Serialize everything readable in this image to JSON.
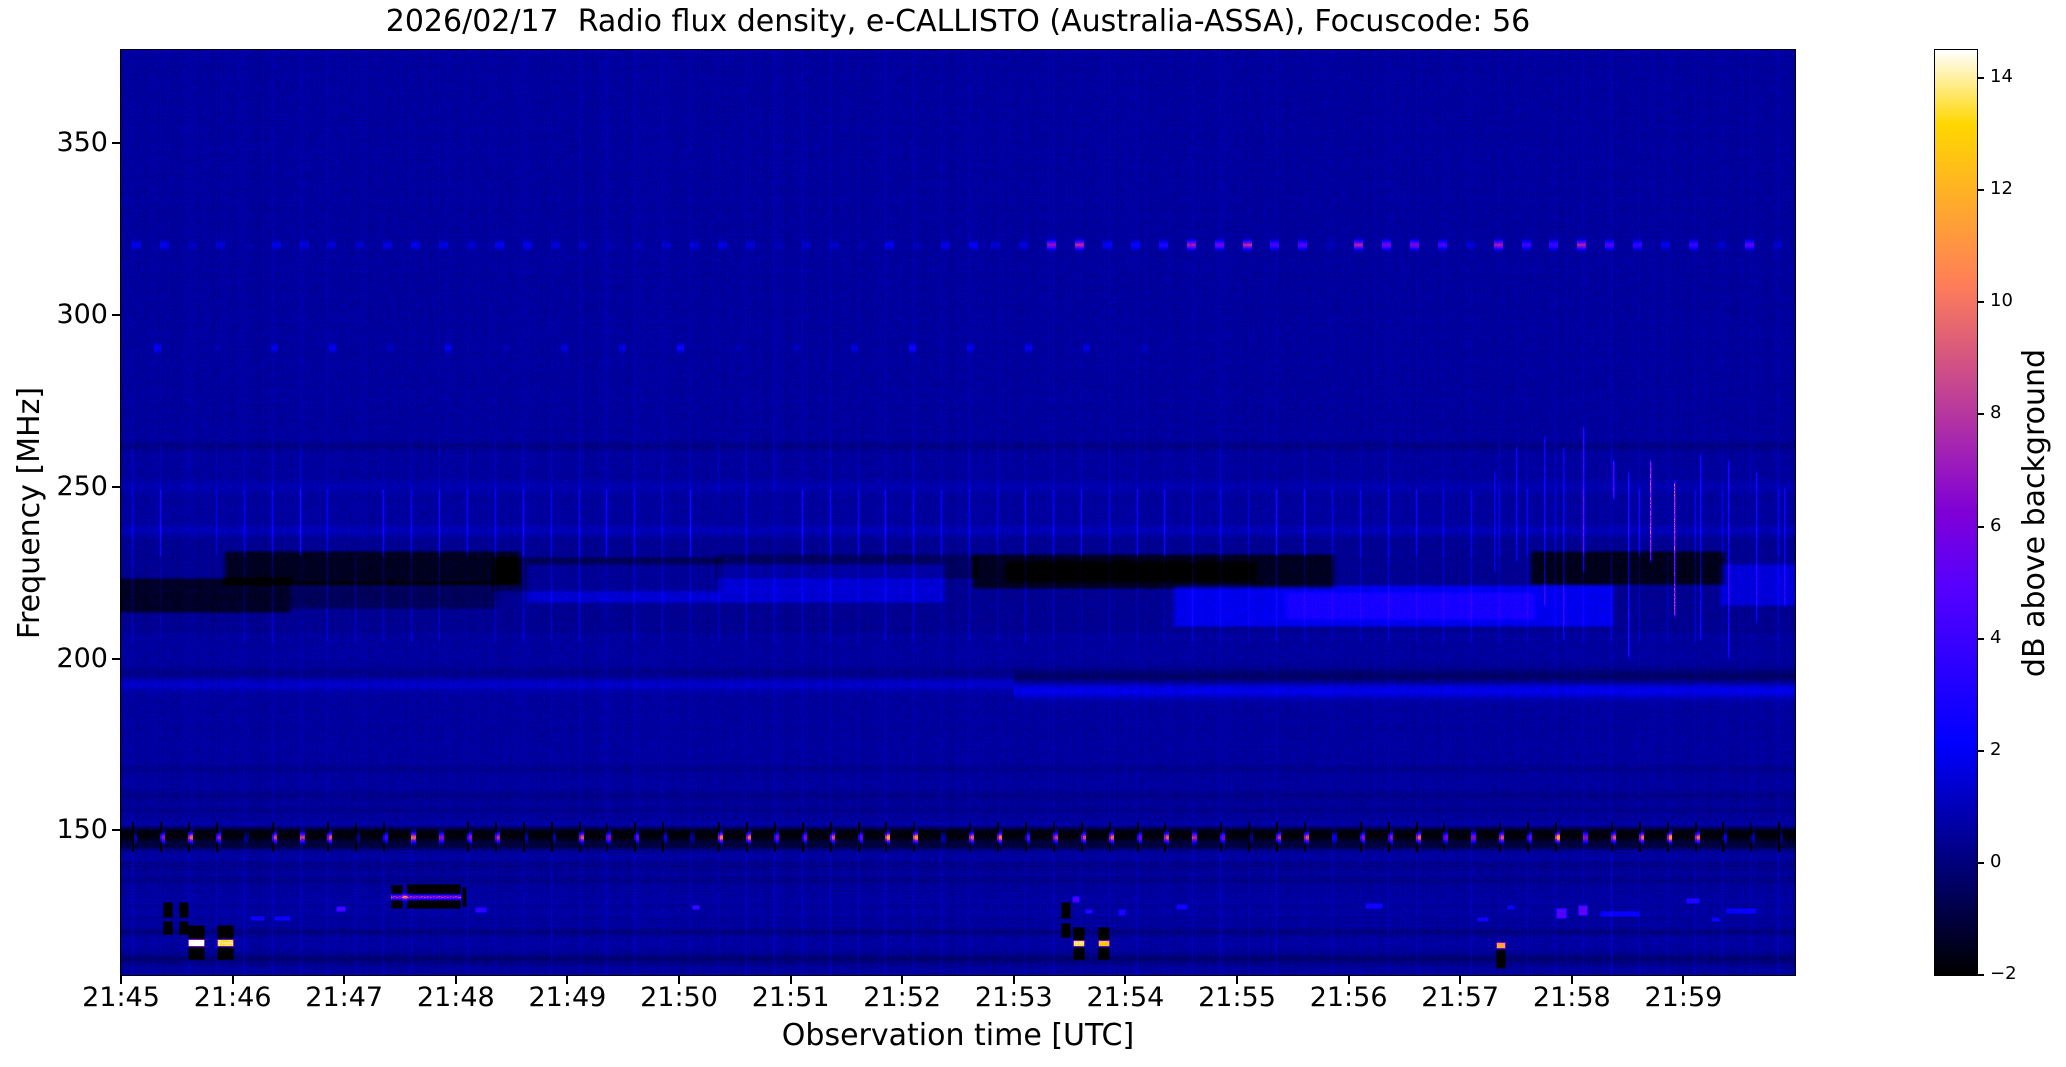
{
  "title": "2026/02/17  Radio flux density, e-CALLISTO (Australia-ASSA), Focuscode: 56",
  "chart_data": {
    "type": "heatmap",
    "title": "2026/02/17  Radio flux density, e-CALLISTO (Australia-ASSA), Focuscode: 56",
    "xlabel": "Observation time [UTC]",
    "ylabel": "Frequency [MHz]",
    "x_ticks": [
      "21:45",
      "21:46",
      "21:47",
      "21:48",
      "21:49",
      "21:50",
      "21:51",
      "21:52",
      "21:53",
      "21:54",
      "21:55",
      "21:56",
      "21:57",
      "21:58",
      "21:59"
    ],
    "x_range_minutes": [
      0,
      15
    ],
    "y_ticks": [
      150,
      200,
      250,
      300,
      350
    ],
    "y_range_mhz": [
      107.9,
      377.1
    ],
    "grid": false,
    "colorbar": {
      "label": "dB above background",
      "ticks": [
        -2,
        0,
        2,
        4,
        6,
        8,
        10,
        12,
        14
      ],
      "vmin": -2.0,
      "vmax": 14.5,
      "colormap": "gnuplot2"
    },
    "background_db": 0.55,
    "noise_sigma_db": 0.42,
    "features": [
      {
        "type": "vcomb",
        "t0": 0.1,
        "t1": 15,
        "step": 0.25,
        "f0": 230,
        "f1": 249,
        "amp": 1.7
      },
      {
        "type": "vcomb",
        "t0": 0.1,
        "t1": 15,
        "step": 0.25,
        "f0": 205,
        "f1": 230,
        "amp": 0.7
      },
      {
        "type": "vcomb",
        "t0": 0.1,
        "t1": 15,
        "step": 0.25,
        "f0": 249,
        "f1": 263,
        "amp": 0.4
      },
      {
        "type": "vcomb",
        "t0": 0.1,
        "t1": 15,
        "step": 0.25,
        "f0": 108,
        "f1": 377,
        "amp": 0.22
      },
      {
        "type": "vcomb",
        "t0": 0.1,
        "t1": 15,
        "step": 0.25,
        "f0": 108,
        "f1": 148,
        "amp": 0.3
      },
      {
        "type": "hline",
        "t0": 0,
        "t1": 15,
        "f": 148.8,
        "hw": 1.8,
        "amp": -2.6
      },
      {
        "type": "hline",
        "t0": 0,
        "t1": 15,
        "f": 145.5,
        "hw": 0.7,
        "amp": -1.0
      },
      {
        "type": "hline",
        "t0": 0,
        "t1": 15,
        "f": 151.8,
        "hw": 0.6,
        "amp": 0.8
      },
      {
        "type": "vcomb",
        "t0": 0.1,
        "t1": 15,
        "step": 0.25,
        "f0": 144,
        "f1": 152.5,
        "amp": -2.8,
        "w": 2
      },
      {
        "type": "dotcomb",
        "t0": 0.1,
        "t1": 15,
        "step": 0.25,
        "f": 148.1,
        "hMHz": 1.0,
        "wMin": 0.045,
        "amp": 10,
        "ampVar": 4
      },
      {
        "type": "band",
        "t0": -0.2,
        "t1": 1.55,
        "f0": 213,
        "f1": 224,
        "amp": -1.7
      },
      {
        "type": "band",
        "t0": 0.9,
        "t1": 3.6,
        "f0": 221,
        "f1": 232,
        "amp": -1.8
      },
      {
        "type": "band",
        "t0": 1.5,
        "t1": 3.4,
        "f0": 214,
        "f1": 223,
        "amp": -0.9
      },
      {
        "type": "band",
        "t0": 3.3,
        "t1": 5.4,
        "f0": 219,
        "f1": 230,
        "amp": -1.0
      },
      {
        "type": "band",
        "t0": 3.6,
        "t1": 7.4,
        "f0": 216,
        "f1": 228,
        "amp": 1.1
      },
      {
        "type": "band",
        "t0": 5.3,
        "t1": 7.7,
        "f0": 223,
        "f1": 231,
        "amp": -0.8
      },
      {
        "type": "band",
        "t0": 7.6,
        "t1": 10.9,
        "f0": 220,
        "f1": 231,
        "amp": -1.8
      },
      {
        "type": "band",
        "t0": 7.9,
        "t1": 10.2,
        "f0": 222,
        "f1": 229,
        "amp": -0.8
      },
      {
        "type": "band",
        "t0": 9.4,
        "t1": 13.4,
        "f0": 209,
        "f1": 222,
        "amp": 1.5
      },
      {
        "type": "band",
        "t0": 10.4,
        "t1": 12.7,
        "f0": 211,
        "f1": 220,
        "amp": 1.0
      },
      {
        "type": "band",
        "t0": 12.6,
        "t1": 14.4,
        "f0": 221,
        "f1": 232,
        "amp": -1.9
      },
      {
        "type": "band",
        "t0": 14.3,
        "t1": 15.2,
        "f0": 215,
        "f1": 228,
        "amp": 1.2
      },
      {
        "type": "band",
        "t0": -0.2,
        "t1": 15.2,
        "f0": 207,
        "f1": 236,
        "amp": -0.2
      },
      {
        "type": "hline",
        "t0": 0,
        "t1": 8,
        "f": 192.5,
        "hw": 1.2,
        "amp": 0.7
      },
      {
        "type": "hline",
        "t0": 8,
        "t1": 15,
        "f": 190.8,
        "hw": 1.5,
        "amp": 1.3
      },
      {
        "type": "hline",
        "t0": 8,
        "t1": 15,
        "f": 195.0,
        "hw": 1.5,
        "amp": -0.9
      },
      {
        "type": "hline",
        "t0": 0,
        "t1": 8,
        "f": 196.0,
        "hw": 1.0,
        "amp": -0.4
      },
      {
        "type": "hline",
        "t0": 0,
        "t1": 15,
        "f": 262.0,
        "hw": 0.8,
        "amp": -0.45
      },
      {
        "type": "hline",
        "t0": 0,
        "t1": 15,
        "f": 250.0,
        "hw": 1.2,
        "amp": 0.3
      },
      {
        "type": "hline",
        "t0": 0,
        "t1": 15,
        "f": 237.5,
        "hw": 1.0,
        "amp": 0.4
      },
      {
        "type": "hline",
        "t0": 0,
        "t1": 15,
        "f": 168.0,
        "hw": 0.8,
        "amp": -0.3
      },
      {
        "type": "hline",
        "t0": 0,
        "t1": 15,
        "f": 160.0,
        "hw": 1.0,
        "amp": -0.35
      },
      {
        "type": "hline",
        "t0": 0,
        "t1": 15,
        "f": 156.0,
        "hw": 0.8,
        "amp": -0.3
      },
      {
        "type": "hline",
        "t0": 0,
        "t1": 15,
        "f": 140.0,
        "hw": 1.0,
        "amp": -0.3
      },
      {
        "type": "hline",
        "t0": 0,
        "t1": 15,
        "f": 135.5,
        "hw": 0.8,
        "amp": -0.35
      },
      {
        "type": "hline",
        "t0": 0,
        "t1": 15,
        "f": 120.5,
        "hw": 0.8,
        "amp": -0.5
      },
      {
        "type": "hline",
        "t0": 0,
        "t1": 15,
        "f": 112.5,
        "hw": 1.2,
        "amp": -0.7
      },
      {
        "type": "dotcomb",
        "t0": 0.1,
        "t1": 7.8,
        "step": 0.25,
        "f": 320.5,
        "hMHz": 0.8,
        "wMin": 0.08,
        "amp": 1.0,
        "ampVar": 0.6
      },
      {
        "type": "dotcomb",
        "t0": 7.8,
        "t1": 15,
        "step": 0.25,
        "f": 320.5,
        "hMHz": 0.8,
        "wMin": 0.08,
        "amp": 4.5,
        "ampVar": 3
      },
      {
        "type": "dotcomb",
        "t0": 0.3,
        "t1": 9.4,
        "step": 0.52,
        "f": 290.5,
        "hMHz": 0.8,
        "wMin": 0.06,
        "amp": 1.6,
        "ampVar": 0.5
      },
      {
        "type": "rect",
        "t0": 0.38,
        "t1": 0.46,
        "f0": 124.8,
        "f1": 129.2,
        "amp": -3
      },
      {
        "type": "rect",
        "t0": 0.38,
        "t1": 0.46,
        "f0": 119.8,
        "f1": 123.6,
        "amp": -3
      },
      {
        "type": "rect",
        "t0": 0.52,
        "t1": 0.6,
        "f0": 124.8,
        "f1": 129.2,
        "amp": -3
      },
      {
        "type": "rect",
        "t0": 0.52,
        "t1": 0.6,
        "f0": 119.8,
        "f1": 123.6,
        "amp": -3
      },
      {
        "type": "rect",
        "t0": 0.6,
        "t1": 0.74,
        "f0": 112.5,
        "f1": 122.5,
        "amp": -3
      },
      {
        "type": "rect",
        "t0": 0.6,
        "t1": 0.74,
        "f0": 116.2,
        "f1": 118.4,
        "amp": 17
      },
      {
        "type": "rect",
        "t0": 0.86,
        "t1": 1.0,
        "f0": 112.5,
        "f1": 122.5,
        "amp": -3
      },
      {
        "type": "rect",
        "t0": 0.86,
        "t1": 1.0,
        "f0": 116.2,
        "f1": 118.4,
        "amp": 16
      },
      {
        "type": "rect",
        "t0": 1.16,
        "t1": 1.28,
        "f0": 123.8,
        "f1": 125.2,
        "amp": 2.2
      },
      {
        "type": "rect",
        "t0": 1.37,
        "t1": 1.51,
        "f0": 123.8,
        "f1": 125.2,
        "amp": 2.2
      },
      {
        "type": "rect",
        "t0": 1.93,
        "t1": 2.01,
        "f0": 126.6,
        "f1": 127.9,
        "amp": 4.0
      },
      {
        "type": "rect",
        "t0": 2.42,
        "t1": 2.52,
        "f0": 127.5,
        "f1": 134.0,
        "amp": -3
      },
      {
        "type": "rect",
        "t0": 2.56,
        "t1": 3.04,
        "f0": 127.5,
        "f1": 134.5,
        "amp": -3.2
      },
      {
        "type": "rect",
        "t0": 3.06,
        "t1": 3.09,
        "f0": 128.0,
        "f1": 133.5,
        "amp": -3
      },
      {
        "type": "hline",
        "t0": 2.42,
        "t1": 3.04,
        "f": 130.7,
        "hw": 0.55,
        "amp": 9.5
      },
      {
        "type": "rect",
        "t0": 3.17,
        "t1": 3.27,
        "f0": 126.2,
        "f1": 127.8,
        "amp": 3.0
      },
      {
        "type": "rect",
        "t0": 5.12,
        "t1": 5.18,
        "f0": 127.2,
        "f1": 128.4,
        "amp": 4.0
      },
      {
        "type": "rect",
        "t0": 8.42,
        "t1": 8.5,
        "f0": 124.5,
        "f1": 129.0,
        "amp": -3
      },
      {
        "type": "rect",
        "t0": 8.42,
        "t1": 8.5,
        "f0": 119.0,
        "f1": 123.0,
        "amp": -3
      },
      {
        "type": "rect",
        "t0": 8.52,
        "t1": 8.58,
        "f0": 129.2,
        "f1": 130.8,
        "amp": 4.0
      },
      {
        "type": "rect",
        "t0": 8.53,
        "t1": 8.63,
        "f0": 112.5,
        "f1": 122.0,
        "amp": -3
      },
      {
        "type": "rect",
        "t0": 8.53,
        "t1": 8.63,
        "f0": 116.2,
        "f1": 118.2,
        "amp": 16
      },
      {
        "type": "rect",
        "t0": 8.75,
        "t1": 8.85,
        "f0": 112.5,
        "f1": 122.0,
        "amp": -3
      },
      {
        "type": "rect",
        "t0": 8.75,
        "t1": 8.85,
        "f0": 116.2,
        "f1": 118.2,
        "amp": 15
      },
      {
        "type": "rect",
        "t0": 8.64,
        "t1": 8.7,
        "f0": 125.8,
        "f1": 127.2,
        "amp": 3.0
      },
      {
        "type": "rect",
        "t0": 8.93,
        "t1": 9.0,
        "f0": 125.5,
        "f1": 127.0,
        "amp": 2.5
      },
      {
        "type": "rect",
        "t0": 9.45,
        "t1": 9.55,
        "f0": 127.0,
        "f1": 128.5,
        "amp": 2.2
      },
      {
        "type": "rect",
        "t0": 11.15,
        "t1": 11.3,
        "f0": 127.5,
        "f1": 128.8,
        "amp": 2.2
      },
      {
        "type": "rect",
        "t0": 12.15,
        "t1": 12.25,
        "f0": 123.5,
        "f1": 124.8,
        "amp": 2.2
      },
      {
        "type": "rect",
        "t0": 12.32,
        "t1": 12.4,
        "f0": 110.0,
        "f1": 115.5,
        "amp": -2.5
      },
      {
        "type": "rect",
        "t0": 12.32,
        "t1": 12.4,
        "f0": 115.8,
        "f1": 117.4,
        "amp": 11
      },
      {
        "type": "rect",
        "t0": 12.42,
        "t1": 12.48,
        "f0": 127.0,
        "f1": 128.3,
        "amp": 2.0
      },
      {
        "type": "rect",
        "t0": 12.86,
        "t1": 12.95,
        "f0": 124.5,
        "f1": 127.5,
        "amp": 4.2
      },
      {
        "type": "rect",
        "t0": 13.06,
        "t1": 13.14,
        "f0": 125.5,
        "f1": 128.3,
        "amp": 4.5
      },
      {
        "type": "rect",
        "t0": 13.25,
        "t1": 13.6,
        "f0": 125.2,
        "f1": 126.5,
        "amp": 1.8
      },
      {
        "type": "rect",
        "t0": 14.02,
        "t1": 14.14,
        "f0": 128.8,
        "f1": 130.2,
        "amp": 2.6
      },
      {
        "type": "rect",
        "t0": 14.25,
        "t1": 14.32,
        "f0": 123.5,
        "f1": 124.8,
        "amp": 2.2
      },
      {
        "type": "rect",
        "t0": 14.38,
        "t1": 14.65,
        "f0": 126.0,
        "f1": 127.3,
        "amp": 1.8
      },
      {
        "type": "vline",
        "t": 12.3,
        "f0": 225,
        "f1": 255,
        "amp": 2.0
      },
      {
        "type": "vline",
        "t": 12.5,
        "f0": 228,
        "f1": 262,
        "amp": 2.2
      },
      {
        "type": "vline",
        "t": 12.75,
        "f0": 215,
        "f1": 265,
        "amp": 2.6
      },
      {
        "type": "vline",
        "t": 12.92,
        "f0": 205,
        "f1": 262,
        "amp": 2.2
      },
      {
        "type": "vline",
        "t": 13.1,
        "f0": 225,
        "f1": 268,
        "amp": 3.2
      },
      {
        "type": "vline",
        "t": 13.37,
        "f0": 246,
        "f1": 258,
        "amp": 4.5
      },
      {
        "type": "vline",
        "t": 13.5,
        "f0": 200,
        "f1": 255,
        "amp": 3.0
      },
      {
        "type": "vline",
        "t": 13.7,
        "f0": 228,
        "f1": 258,
        "amp": 7.0
      },
      {
        "type": "vline",
        "t": 13.92,
        "f0": 212,
        "f1": 252,
        "amp": 7.5
      },
      {
        "type": "vline",
        "t": 14.15,
        "f0": 205,
        "f1": 260,
        "amp": 2.5
      },
      {
        "type": "vline",
        "t": 14.4,
        "f0": 200,
        "f1": 258,
        "amp": 2.8
      },
      {
        "type": "vline",
        "t": 14.65,
        "f0": 210,
        "f1": 255,
        "amp": 2.4
      },
      {
        "type": "vline",
        "t": 14.9,
        "f0": 215,
        "f1": 250,
        "amp": 2.2
      }
    ]
  }
}
